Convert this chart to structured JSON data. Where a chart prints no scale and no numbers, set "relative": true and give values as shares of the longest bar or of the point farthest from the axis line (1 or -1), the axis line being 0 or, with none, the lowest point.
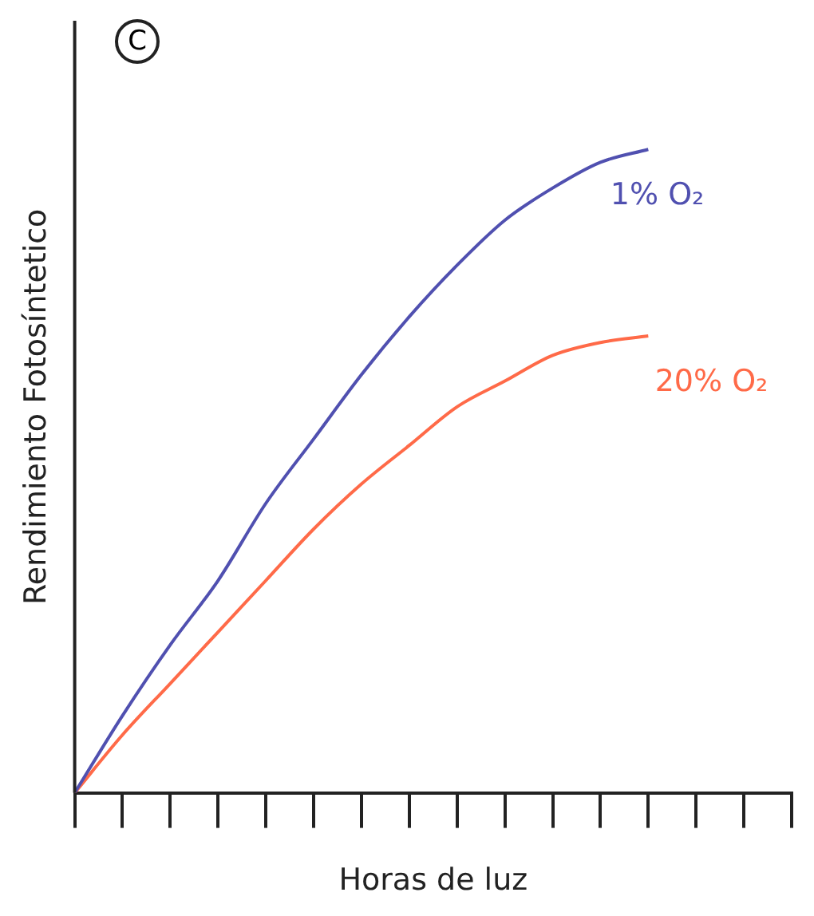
{
  "chart_data": {
    "type": "line",
    "relative": true,
    "xlabel": "Horas de luz",
    "ylabel": "Rendimiento Fotosíntetico",
    "annotations": [
      "C"
    ],
    "grid": false,
    "legend": false,
    "marker": "none",
    "line_style": "solid",
    "categories": [
      null,
      null,
      null,
      null,
      null,
      null,
      null,
      null,
      null,
      null,
      null,
      null,
      null,
      null,
      null,
      null
    ],
    "series": [
      {
        "name": "1% O₂",
        "color": "#5050b0",
        "values": [
          0,
          0.12,
          0.23,
          0.33,
          0.45,
          0.55,
          0.65,
          0.74,
          0.82,
          0.89,
          0.94,
          0.98,
          1,
          null,
          null,
          null
        ]
      },
      {
        "name": "20% O₂",
        "color": "#ff6a48",
        "values": [
          0,
          0.09,
          0.17,
          0.25,
          0.33,
          0.41,
          0.48,
          0.54,
          0.6,
          0.64,
          0.68,
          0.7,
          0.71,
          null,
          null,
          null
        ]
      }
    ]
  }
}
